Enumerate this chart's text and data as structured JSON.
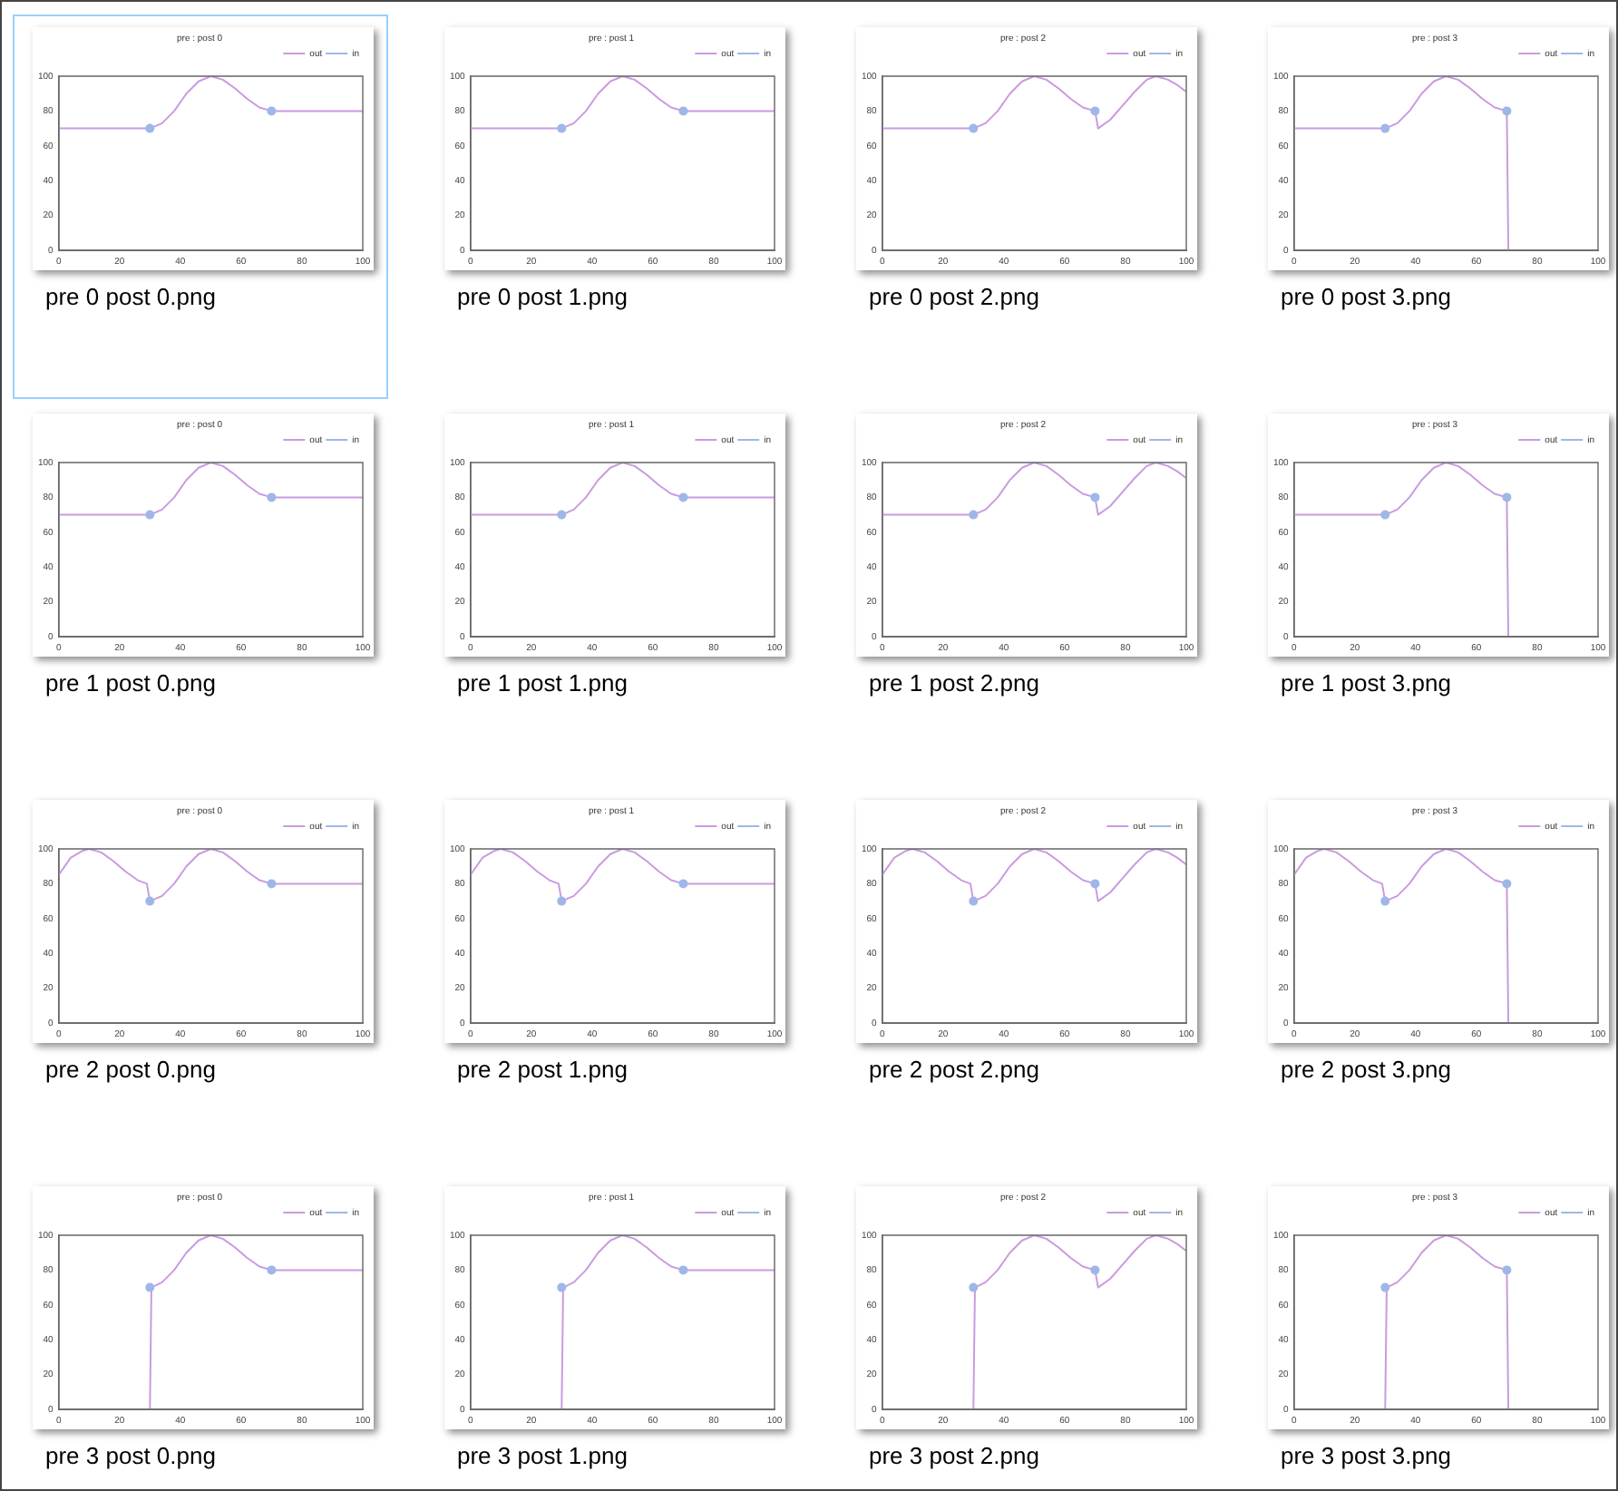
{
  "chart_data": [
    {
      "type": "line",
      "title": "pre : post 0",
      "annotations": [
        "pre 0 post 0.png"
      ],
      "xlim": [
        0,
        100
      ],
      "ylim": [
        0,
        100
      ],
      "xticks": [
        0,
        20,
        40,
        60,
        80,
        100
      ],
      "yticks": [
        0,
        20,
        40,
        60,
        80,
        100
      ],
      "legend": "top right",
      "series": [
        {
          "name": "out",
          "color": "#c99be0",
          "x": [
            0,
            30,
            34,
            38,
            42,
            46,
            50,
            54,
            58,
            62,
            66,
            70,
            100
          ],
          "values": [
            70,
            70,
            73,
            80,
            90,
            97,
            100,
            98,
            93,
            87,
            82,
            80,
            80
          ]
        },
        {
          "name": "in",
          "type": "scatter",
          "marker": "circle",
          "color": "#9fb7e8",
          "x": [
            30,
            70
          ],
          "values": [
            70,
            80
          ]
        }
      ]
    },
    {
      "type": "line",
      "title": "pre : post 1",
      "annotations": [
        "pre 0 post 1.png"
      ],
      "xlim": [
        0,
        100
      ],
      "ylim": [
        0,
        100
      ],
      "xticks": [
        0,
        20,
        40,
        60,
        80,
        100
      ],
      "yticks": [
        0,
        20,
        40,
        60,
        80,
        100
      ],
      "legend": "top right",
      "series": [
        {
          "name": "out",
          "color": "#c99be0",
          "x": [
            0,
            30,
            34,
            38,
            42,
            46,
            50,
            54,
            58,
            62,
            66,
            70,
            100
          ],
          "values": [
            70,
            70,
            73,
            80,
            90,
            97,
            100,
            98,
            93,
            87,
            82,
            80,
            80
          ]
        },
        {
          "name": "in",
          "type": "scatter",
          "marker": "circle",
          "color": "#9fb7e8",
          "x": [
            30,
            70
          ],
          "values": [
            70,
            80
          ]
        }
      ]
    },
    {
      "type": "line",
      "title": "pre : post 2",
      "annotations": [
        "pre 0 post 2.png"
      ],
      "xlim": [
        0,
        100
      ],
      "ylim": [
        0,
        100
      ],
      "xticks": [
        0,
        20,
        40,
        60,
        80,
        100
      ],
      "yticks": [
        0,
        20,
        40,
        60,
        80,
        100
      ],
      "legend": "top right",
      "series": [
        {
          "name": "out",
          "color": "#c99be0",
          "x": [
            0,
            30,
            34,
            38,
            42,
            46,
            50,
            54,
            58,
            62,
            66,
            70,
            71,
            75,
            79,
            83,
            87,
            90,
            94,
            97,
            100
          ],
          "values": [
            70,
            70,
            73,
            80,
            90,
            97,
            100,
            98,
            93,
            87,
            82,
            80,
            70,
            75,
            83,
            91,
            98,
            100,
            98,
            95,
            91
          ]
        },
        {
          "name": "in",
          "type": "scatter",
          "marker": "circle",
          "color": "#9fb7e8",
          "x": [
            30,
            70
          ],
          "values": [
            70,
            80
          ]
        }
      ]
    },
    {
      "type": "line",
      "title": "pre : post 3",
      "annotations": [
        "pre 0 post 3.png"
      ],
      "xlim": [
        0,
        100
      ],
      "ylim": [
        0,
        100
      ],
      "xticks": [
        0,
        20,
        40,
        60,
        80,
        100
      ],
      "yticks": [
        0,
        20,
        40,
        60,
        80,
        100
      ],
      "legend": "top right",
      "series": [
        {
          "name": "out",
          "color": "#c99be0",
          "x": [
            0,
            30,
            34,
            38,
            42,
            46,
            50,
            54,
            58,
            62,
            66,
            70,
            70.5
          ],
          "values": [
            70,
            70,
            73,
            80,
            90,
            97,
            100,
            98,
            93,
            87,
            82,
            80,
            0
          ]
        },
        {
          "name": "in",
          "type": "scatter",
          "marker": "circle",
          "color": "#9fb7e8",
          "x": [
            30,
            70
          ],
          "values": [
            70,
            80
          ]
        }
      ]
    },
    {
      "type": "line",
      "title": "pre : post 0",
      "annotations": [
        "pre 1 post 0.png"
      ],
      "xlim": [
        0,
        100
      ],
      "ylim": [
        0,
        100
      ],
      "xticks": [
        0,
        20,
        40,
        60,
        80,
        100
      ],
      "yticks": [
        0,
        20,
        40,
        60,
        80,
        100
      ],
      "legend": "top right",
      "series": [
        {
          "name": "out",
          "color": "#c99be0",
          "x": [
            0,
            30,
            34,
            38,
            42,
            46,
            50,
            54,
            58,
            62,
            66,
            70,
            100
          ],
          "values": [
            70,
            70,
            73,
            80,
            90,
            97,
            100,
            98,
            93,
            87,
            82,
            80,
            80
          ]
        },
        {
          "name": "in",
          "type": "scatter",
          "marker": "circle",
          "color": "#9fb7e8",
          "x": [
            30,
            70
          ],
          "values": [
            70,
            80
          ]
        }
      ]
    },
    {
      "type": "line",
      "title": "pre : post 1",
      "annotations": [
        "pre 1 post 1.png"
      ],
      "xlim": [
        0,
        100
      ],
      "ylim": [
        0,
        100
      ],
      "xticks": [
        0,
        20,
        40,
        60,
        80,
        100
      ],
      "yticks": [
        0,
        20,
        40,
        60,
        80,
        100
      ],
      "legend": "top right",
      "series": [
        {
          "name": "out",
          "color": "#c99be0",
          "x": [
            0,
            30,
            34,
            38,
            42,
            46,
            50,
            54,
            58,
            62,
            66,
            70,
            100
          ],
          "values": [
            70,
            70,
            73,
            80,
            90,
            97,
            100,
            98,
            93,
            87,
            82,
            80,
            80
          ]
        },
        {
          "name": "in",
          "type": "scatter",
          "marker": "circle",
          "color": "#9fb7e8",
          "x": [
            30,
            70
          ],
          "values": [
            70,
            80
          ]
        }
      ]
    },
    {
      "type": "line",
      "title": "pre : post 2",
      "annotations": [
        "pre 1 post 2.png"
      ],
      "xlim": [
        0,
        100
      ],
      "ylim": [
        0,
        100
      ],
      "xticks": [
        0,
        20,
        40,
        60,
        80,
        100
      ],
      "yticks": [
        0,
        20,
        40,
        60,
        80,
        100
      ],
      "legend": "top right",
      "series": [
        {
          "name": "out",
          "color": "#c99be0",
          "x": [
            0,
            30,
            34,
            38,
            42,
            46,
            50,
            54,
            58,
            62,
            66,
            70,
            71,
            75,
            79,
            83,
            87,
            90,
            94,
            97,
            100
          ],
          "values": [
            70,
            70,
            73,
            80,
            90,
            97,
            100,
            98,
            93,
            87,
            82,
            80,
            70,
            75,
            83,
            91,
            98,
            100,
            98,
            95,
            91
          ]
        },
        {
          "name": "in",
          "type": "scatter",
          "marker": "circle",
          "color": "#9fb7e8",
          "x": [
            30,
            70
          ],
          "values": [
            70,
            80
          ]
        }
      ]
    },
    {
      "type": "line",
      "title": "pre : post 3",
      "annotations": [
        "pre 1 post 3.png"
      ],
      "xlim": [
        0,
        100
      ],
      "ylim": [
        0,
        100
      ],
      "xticks": [
        0,
        20,
        40,
        60,
        80,
        100
      ],
      "yticks": [
        0,
        20,
        40,
        60,
        80,
        100
      ],
      "legend": "top right",
      "series": [
        {
          "name": "out",
          "color": "#c99be0",
          "x": [
            0,
            30,
            34,
            38,
            42,
            46,
            50,
            54,
            58,
            62,
            66,
            70,
            70.5
          ],
          "values": [
            70,
            70,
            73,
            80,
            90,
            97,
            100,
            98,
            93,
            87,
            82,
            80,
            0
          ]
        },
        {
          "name": "in",
          "type": "scatter",
          "marker": "circle",
          "color": "#9fb7e8",
          "x": [
            30,
            70
          ],
          "values": [
            70,
            80
          ]
        }
      ]
    },
    {
      "type": "line",
      "title": "pre : post 0",
      "annotations": [
        "pre 2 post 0.png"
      ],
      "xlim": [
        0,
        100
      ],
      "ylim": [
        0,
        100
      ],
      "xticks": [
        0,
        20,
        40,
        60,
        80,
        100
      ],
      "yticks": [
        0,
        20,
        40,
        60,
        80,
        100
      ],
      "legend": "top right",
      "series": [
        {
          "name": "out",
          "color": "#c99be0",
          "x": [
            0,
            4,
            8,
            10,
            14,
            18,
            22,
            26,
            29,
            30,
            34,
            38,
            42,
            46,
            50,
            54,
            58,
            62,
            66,
            70,
            100
          ],
          "values": [
            85,
            95,
            99,
            100,
            98,
            93,
            87,
            82,
            80,
            70,
            73,
            80,
            90,
            97,
            100,
            98,
            93,
            87,
            82,
            80,
            80
          ]
        },
        {
          "name": "in",
          "type": "scatter",
          "marker": "circle",
          "color": "#9fb7e8",
          "x": [
            30,
            70
          ],
          "values": [
            70,
            80
          ]
        }
      ]
    },
    {
      "type": "line",
      "title": "pre : post 1",
      "annotations": [
        "pre 2 post 1.png"
      ],
      "xlim": [
        0,
        100
      ],
      "ylim": [
        0,
        100
      ],
      "xticks": [
        0,
        20,
        40,
        60,
        80,
        100
      ],
      "yticks": [
        0,
        20,
        40,
        60,
        80,
        100
      ],
      "legend": "top right",
      "series": [
        {
          "name": "out",
          "color": "#c99be0",
          "x": [
            0,
            4,
            8,
            10,
            14,
            18,
            22,
            26,
            29,
            30,
            34,
            38,
            42,
            46,
            50,
            54,
            58,
            62,
            66,
            70,
            100
          ],
          "values": [
            85,
            95,
            99,
            100,
            98,
            93,
            87,
            82,
            80,
            70,
            73,
            80,
            90,
            97,
            100,
            98,
            93,
            87,
            82,
            80,
            80
          ]
        },
        {
          "name": "in",
          "type": "scatter",
          "marker": "circle",
          "color": "#9fb7e8",
          "x": [
            30,
            70
          ],
          "values": [
            70,
            80
          ]
        }
      ]
    },
    {
      "type": "line",
      "title": "pre : post 2",
      "annotations": [
        "pre 2 post 2.png"
      ],
      "xlim": [
        0,
        100
      ],
      "ylim": [
        0,
        100
      ],
      "xticks": [
        0,
        20,
        40,
        60,
        80,
        100
      ],
      "yticks": [
        0,
        20,
        40,
        60,
        80,
        100
      ],
      "legend": "top right",
      "series": [
        {
          "name": "out",
          "color": "#c99be0",
          "x": [
            0,
            4,
            8,
            10,
            14,
            18,
            22,
            26,
            29,
            30,
            34,
            38,
            42,
            46,
            50,
            54,
            58,
            62,
            66,
            70,
            71,
            75,
            79,
            83,
            87,
            90,
            94,
            97,
            100
          ],
          "values": [
            85,
            95,
            99,
            100,
            98,
            93,
            87,
            82,
            80,
            70,
            73,
            80,
            90,
            97,
            100,
            98,
            93,
            87,
            82,
            80,
            70,
            75,
            83,
            91,
            98,
            100,
            98,
            95,
            91
          ]
        },
        {
          "name": "in",
          "type": "scatter",
          "marker": "circle",
          "color": "#9fb7e8",
          "x": [
            30,
            70
          ],
          "values": [
            70,
            80
          ]
        }
      ]
    },
    {
      "type": "line",
      "title": "pre : post 3",
      "annotations": [
        "pre 2 post 3.png"
      ],
      "xlim": [
        0,
        100
      ],
      "ylim": [
        0,
        100
      ],
      "xticks": [
        0,
        20,
        40,
        60,
        80,
        100
      ],
      "yticks": [
        0,
        20,
        40,
        60,
        80,
        100
      ],
      "legend": "top right",
      "series": [
        {
          "name": "out",
          "color": "#c99be0",
          "x": [
            0,
            4,
            8,
            10,
            14,
            18,
            22,
            26,
            29,
            30,
            34,
            38,
            42,
            46,
            50,
            54,
            58,
            62,
            66,
            70,
            70.5
          ],
          "values": [
            85,
            95,
            99,
            100,
            98,
            93,
            87,
            82,
            80,
            70,
            73,
            80,
            90,
            97,
            100,
            98,
            93,
            87,
            82,
            80,
            0
          ]
        },
        {
          "name": "in",
          "type": "scatter",
          "marker": "circle",
          "color": "#9fb7e8",
          "x": [
            30,
            70
          ],
          "values": [
            70,
            80
          ]
        }
      ]
    },
    {
      "type": "line",
      "title": "pre : post 0",
      "annotations": [
        "pre 3 post 0.png"
      ],
      "xlim": [
        0,
        100
      ],
      "ylim": [
        0,
        100
      ],
      "xticks": [
        0,
        20,
        40,
        60,
        80,
        100
      ],
      "yticks": [
        0,
        20,
        40,
        60,
        80,
        100
      ],
      "legend": "top right",
      "series": [
        {
          "name": "out",
          "color": "#c99be0",
          "x": [
            30,
            30.5,
            34,
            38,
            42,
            46,
            50,
            54,
            58,
            62,
            66,
            70,
            100
          ],
          "values": [
            0,
            70,
            73,
            80,
            90,
            97,
            100,
            98,
            93,
            87,
            82,
            80,
            80
          ]
        },
        {
          "name": "in",
          "type": "scatter",
          "marker": "circle",
          "color": "#9fb7e8",
          "x": [
            30,
            70
          ],
          "values": [
            70,
            80
          ]
        }
      ]
    },
    {
      "type": "line",
      "title": "pre : post 1",
      "annotations": [
        "pre 3 post 1.png"
      ],
      "xlim": [
        0,
        100
      ],
      "ylim": [
        0,
        100
      ],
      "xticks": [
        0,
        20,
        40,
        60,
        80,
        100
      ],
      "yticks": [
        0,
        20,
        40,
        60,
        80,
        100
      ],
      "legend": "top right",
      "series": [
        {
          "name": "out",
          "color": "#c99be0",
          "x": [
            30,
            30.5,
            34,
            38,
            42,
            46,
            50,
            54,
            58,
            62,
            66,
            70,
            100
          ],
          "values": [
            0,
            70,
            73,
            80,
            90,
            97,
            100,
            98,
            93,
            87,
            82,
            80,
            80
          ]
        },
        {
          "name": "in",
          "type": "scatter",
          "marker": "circle",
          "color": "#9fb7e8",
          "x": [
            30,
            70
          ],
          "values": [
            70,
            80
          ]
        }
      ]
    },
    {
      "type": "line",
      "title": "pre : post 2",
      "annotations": [
        "pre 3 post 2.png"
      ],
      "xlim": [
        0,
        100
      ],
      "ylim": [
        0,
        100
      ],
      "xticks": [
        0,
        20,
        40,
        60,
        80,
        100
      ],
      "yticks": [
        0,
        20,
        40,
        60,
        80,
        100
      ],
      "legend": "top right",
      "series": [
        {
          "name": "out",
          "color": "#c99be0",
          "x": [
            30,
            30.5,
            34,
            38,
            42,
            46,
            50,
            54,
            58,
            62,
            66,
            70,
            71,
            75,
            79,
            83,
            87,
            90,
            94,
            97,
            100
          ],
          "values": [
            0,
            70,
            73,
            80,
            90,
            97,
            100,
            98,
            93,
            87,
            82,
            80,
            70,
            75,
            83,
            91,
            98,
            100,
            98,
            95,
            91
          ]
        },
        {
          "name": "in",
          "type": "scatter",
          "marker": "circle",
          "color": "#9fb7e8",
          "x": [
            30,
            70
          ],
          "values": [
            70,
            80
          ]
        }
      ]
    },
    {
      "type": "line",
      "title": "pre : post 3",
      "annotations": [
        "pre 3 post 3.png"
      ],
      "xlim": [
        0,
        100
      ],
      "ylim": [
        0,
        100
      ],
      "xticks": [
        0,
        20,
        40,
        60,
        80,
        100
      ],
      "yticks": [
        0,
        20,
        40,
        60,
        80,
        100
      ],
      "legend": "top right",
      "series": [
        {
          "name": "out",
          "color": "#c99be0",
          "x": [
            30,
            30.5,
            34,
            38,
            42,
            46,
            50,
            54,
            58,
            62,
            66,
            70,
            70.5
          ],
          "values": [
            0,
            70,
            73,
            80,
            90,
            97,
            100,
            98,
            93,
            87,
            82,
            80,
            0
          ]
        },
        {
          "name": "in",
          "type": "scatter",
          "marker": "circle",
          "color": "#9fb7e8",
          "x": [
            30,
            70
          ],
          "values": [
            70,
            80
          ]
        }
      ]
    }
  ]
}
